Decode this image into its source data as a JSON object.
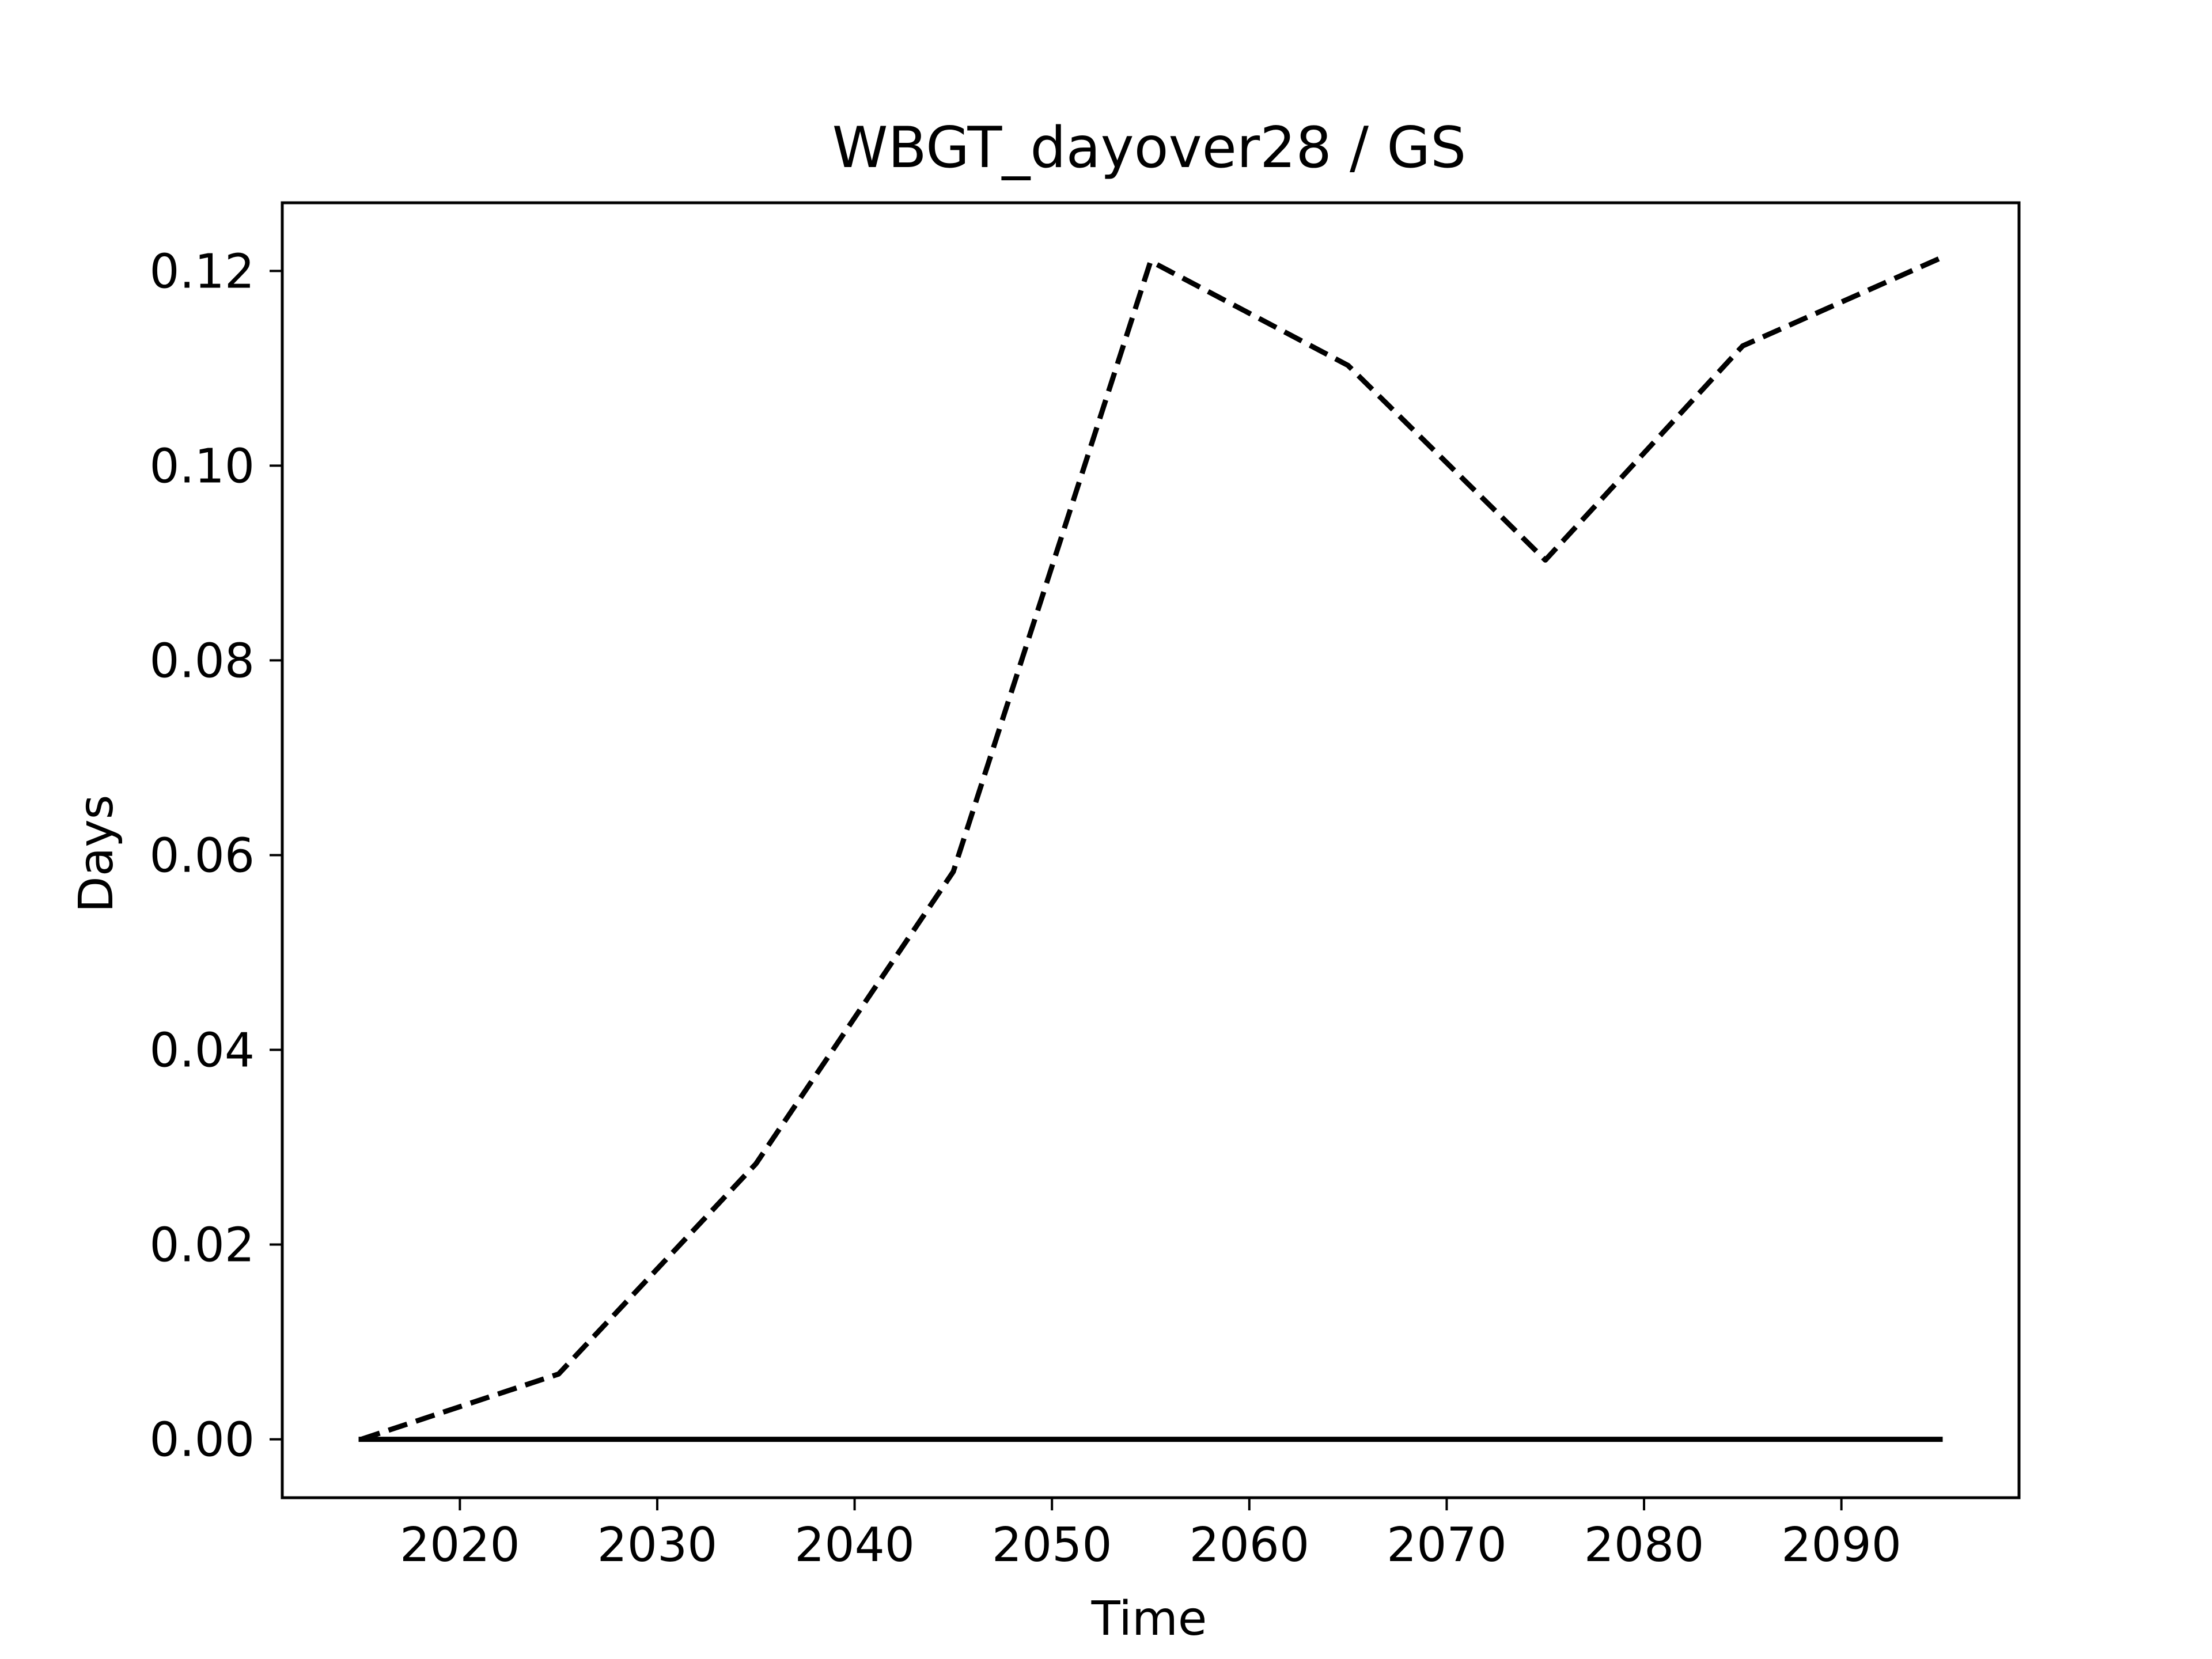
{
  "chart_data": {
    "type": "line",
    "title": "WBGT_dayover28 / GS",
    "xlabel": "Time",
    "ylabel": "Days",
    "xlim": [
      2011,
      2099
    ],
    "ylim": [
      -0.006,
      0.127
    ],
    "xticks": [
      2020,
      2030,
      2040,
      2050,
      2060,
      2070,
      2080,
      2090
    ],
    "yticks": [
      "0.00",
      "0.02",
      "0.04",
      "0.06",
      "0.08",
      "0.10",
      "0.12"
    ],
    "ytick_values": [
      0.0,
      0.02,
      0.04,
      0.06,
      0.08,
      0.1,
      0.12
    ],
    "grid": false,
    "legend": "none",
    "series": [
      {
        "style": "dashed",
        "color": "#000000",
        "x": [
          2015,
          2025,
          2035,
          2045,
          2055,
          2065,
          2075,
          2085,
          2095
        ],
        "y": [
          0.0,
          0.0067,
          0.0283,
          0.0583,
          0.121,
          0.1103,
          0.0903,
          0.1123,
          0.1213
        ]
      },
      {
        "style": "solid",
        "color": "#000000",
        "x": [
          2015,
          2025,
          2035,
          2045,
          2055,
          2065,
          2075,
          2085,
          2095
        ],
        "y": [
          0.0,
          0.0,
          0.0,
          0.0,
          0.0,
          0.0,
          0.0,
          0.0,
          0.0
        ]
      }
    ]
  }
}
